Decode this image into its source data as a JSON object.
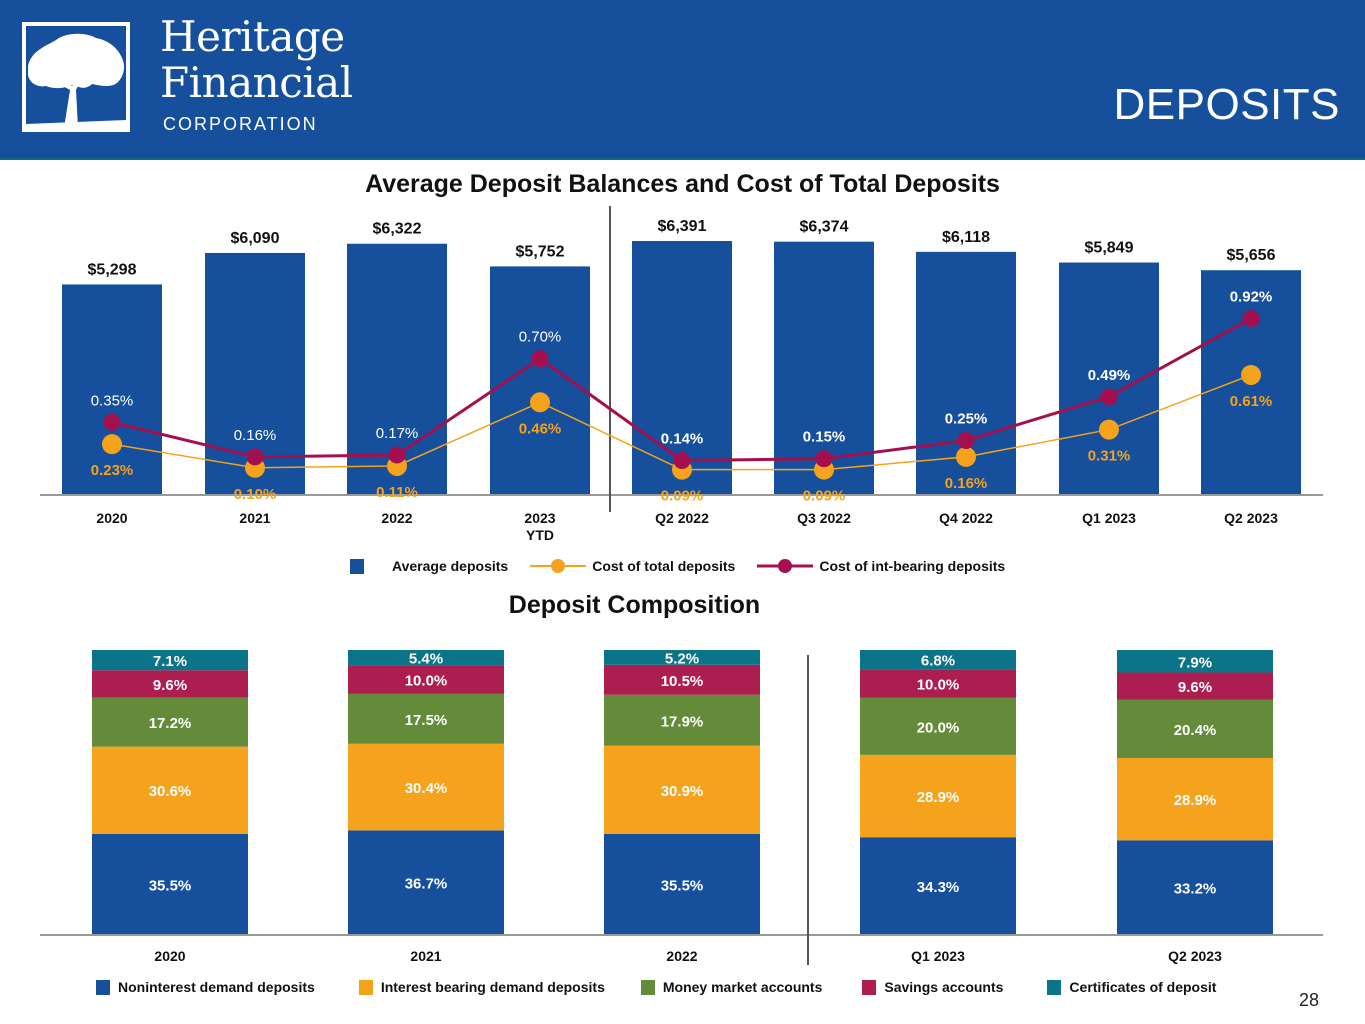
{
  "header": {
    "logo_line1": "Heritage",
    "logo_line2": "Financial",
    "logo_line3": "CORPORATION",
    "page_heading": "DEPOSITS"
  },
  "colors": {
    "header_bg": "#164f9c",
    "bar_blue": "#164f9c",
    "orange": "#f5a21d",
    "maroon": "#a4104f",
    "green": "#648b3a",
    "savings": "#ac1d50",
    "teal": "#0b7489"
  },
  "page_number": "28",
  "chart_data": [
    {
      "type": "bar",
      "title": "Average Deposit Balances and Cost of Total Deposits",
      "categories": [
        "2020",
        "2021",
        "2022",
        "2023 YTD",
        "Q2 2022",
        "Q3 2022",
        "Q4 2022",
        "Q1 2023",
        "Q2 2023"
      ],
      "category_lines": [
        [
          "2020"
        ],
        [
          "2021"
        ],
        [
          "2022"
        ],
        [
          "2023",
          "YTD"
        ],
        [
          "Q2 2022"
        ],
        [
          "Q3 2022"
        ],
        [
          "Q4 2022"
        ],
        [
          "Q1 2023"
        ],
        [
          "Q2 2023"
        ]
      ],
      "divider_after_index": 3,
      "series": [
        {
          "name": "Average deposits",
          "kind": "bar",
          "values": [
            5298,
            6090,
            6322,
            5752,
            6391,
            6374,
            6118,
            5849,
            5656
          ],
          "labels": [
            "$5,298",
            "$6,090",
            "$6,322",
            "$5,752",
            "$6,391",
            "$6,374",
            "$6,118",
            "$5,849",
            "$5,656"
          ]
        },
        {
          "name": "Cost of total deposits",
          "kind": "line",
          "values": [
            0.23,
            0.1,
            0.11,
            0.46,
            0.09,
            0.09,
            0.16,
            0.31,
            0.61
          ],
          "labels": [
            "0.23%",
            "0.10%",
            "0.11%",
            "0.46%",
            "0.09%",
            "0.09%",
            "0.16%",
            "0.31%",
            "0.61%"
          ]
        },
        {
          "name": "Cost of int-bearing deposits",
          "kind": "line",
          "values": [
            0.35,
            0.16,
            0.17,
            0.7,
            0.14,
            0.15,
            0.25,
            0.49,
            0.92
          ],
          "labels": [
            "0.35%",
            "0.16%",
            "0.17%",
            "0.70%",
            "0.14%",
            "0.15%",
            "0.25%",
            "0.49%",
            "0.92%"
          ]
        }
      ],
      "legend": [
        "Average deposits",
        "Cost of total deposits",
        "Cost of int-bearing deposits"
      ],
      "legend_position": "bottom",
      "grid": false
    },
    {
      "type": "bar",
      "stacked": true,
      "percent": true,
      "title": "Deposit Composition",
      "categories": [
        "2020",
        "2021",
        "2022",
        "Q1 2023",
        "Q2 2023"
      ],
      "divider_after_index": 2,
      "series": [
        {
          "name": "Noninterest demand deposits",
          "values": [
            35.5,
            36.7,
            35.5,
            34.3,
            33.2
          ]
        },
        {
          "name": "Interest bearing demand deposits",
          "values": [
            30.6,
            30.4,
            30.9,
            28.9,
            28.9
          ]
        },
        {
          "name": "Money market accounts",
          "values": [
            17.2,
            17.5,
            17.9,
            20.0,
            20.4
          ]
        },
        {
          "name": "Savings accounts",
          "values": [
            9.6,
            10.0,
            10.5,
            10.0,
            9.6
          ]
        },
        {
          "name": "Certificates of deposit",
          "values": [
            7.1,
            5.4,
            5.2,
            6.8,
            7.9
          ]
        }
      ],
      "legend_position": "bottom",
      "grid": false
    }
  ]
}
